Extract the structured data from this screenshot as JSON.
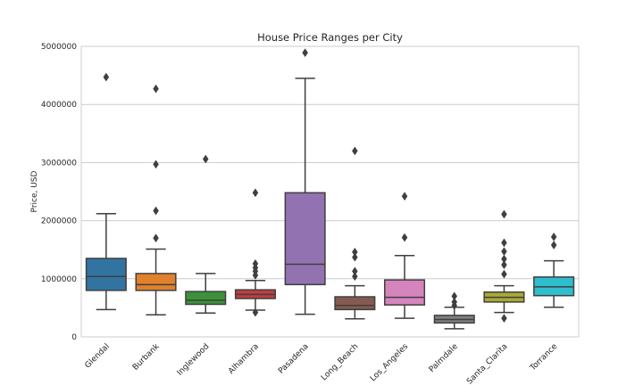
{
  "chart_data": {
    "type": "box",
    "title": "House Price Ranges per City",
    "xlabel": "",
    "ylabel": "Price, USD",
    "ylim": [
      0,
      5000000
    ],
    "yticks": [
      "0",
      "1000000",
      "2000000",
      "3000000",
      "4000000",
      "5000000"
    ],
    "ytick_values": [
      0,
      1000000,
      2000000,
      3000000,
      4000000,
      5000000
    ],
    "grid": "horizontal",
    "categories": [
      "Glendal",
      "Burbank",
      "Inglewood",
      "Alhambra",
      "Pasadena",
      "Long_Beach",
      "Los_Angeles",
      "Palmdale",
      "Santa_Clarita",
      "Torrance"
    ],
    "boxes": [
      {
        "whisker_low": 470000,
        "q1": 800000,
        "median": 1040000,
        "q3": 1350000,
        "whisker_high": 2120000,
        "outliers": [
          4470000
        ]
      },
      {
        "whisker_low": 380000,
        "q1": 800000,
        "median": 900000,
        "q3": 1090000,
        "whisker_high": 1510000,
        "outliers": [
          1700000,
          2170000,
          2970000,
          4270000
        ]
      },
      {
        "whisker_low": 410000,
        "q1": 560000,
        "median": 630000,
        "q3": 780000,
        "whisker_high": 1090000,
        "outliers": [
          3060000
        ]
      },
      {
        "whisker_low": 460000,
        "q1": 660000,
        "median": 730000,
        "q3": 810000,
        "whisker_high": 970000,
        "outliers": [
          420000,
          1060000,
          1130000,
          1190000,
          1260000,
          2480000
        ]
      },
      {
        "whisker_low": 390000,
        "q1": 900000,
        "median": 1250000,
        "q3": 2480000,
        "whisker_high": 4450000,
        "outliers": [
          4890000
        ]
      },
      {
        "whisker_low": 310000,
        "q1": 470000,
        "median": 540000,
        "q3": 690000,
        "whisker_high": 880000,
        "outliers": [
          1040000,
          1130000,
          1370000,
          1460000,
          3200000
        ]
      },
      {
        "whisker_low": 320000,
        "q1": 550000,
        "median": 680000,
        "q3": 980000,
        "whisker_high": 1400000,
        "outliers": [
          1710000,
          2420000
        ]
      },
      {
        "whisker_low": 140000,
        "q1": 240000,
        "median": 300000,
        "q3": 370000,
        "whisker_high": 510000,
        "outliers": [
          540000,
          600000,
          700000
        ]
      },
      {
        "whisker_low": 420000,
        "q1": 600000,
        "median": 680000,
        "q3": 770000,
        "whisker_high": 880000,
        "outliers": [
          320000,
          1080000,
          1240000,
          1340000,
          1470000,
          1620000,
          2110000
        ]
      },
      {
        "whisker_low": 510000,
        "q1": 710000,
        "median": 860000,
        "q3": 1030000,
        "whisker_high": 1310000,
        "outliers": [
          1580000,
          1720000
        ]
      }
    ],
    "colors": [
      "#3274a1",
      "#e1812c",
      "#3a923a",
      "#c03d3e",
      "#9372b2",
      "#845b53",
      "#d684bd",
      "#7f7f7f",
      "#a9aa35",
      "#2ebece"
    ]
  }
}
